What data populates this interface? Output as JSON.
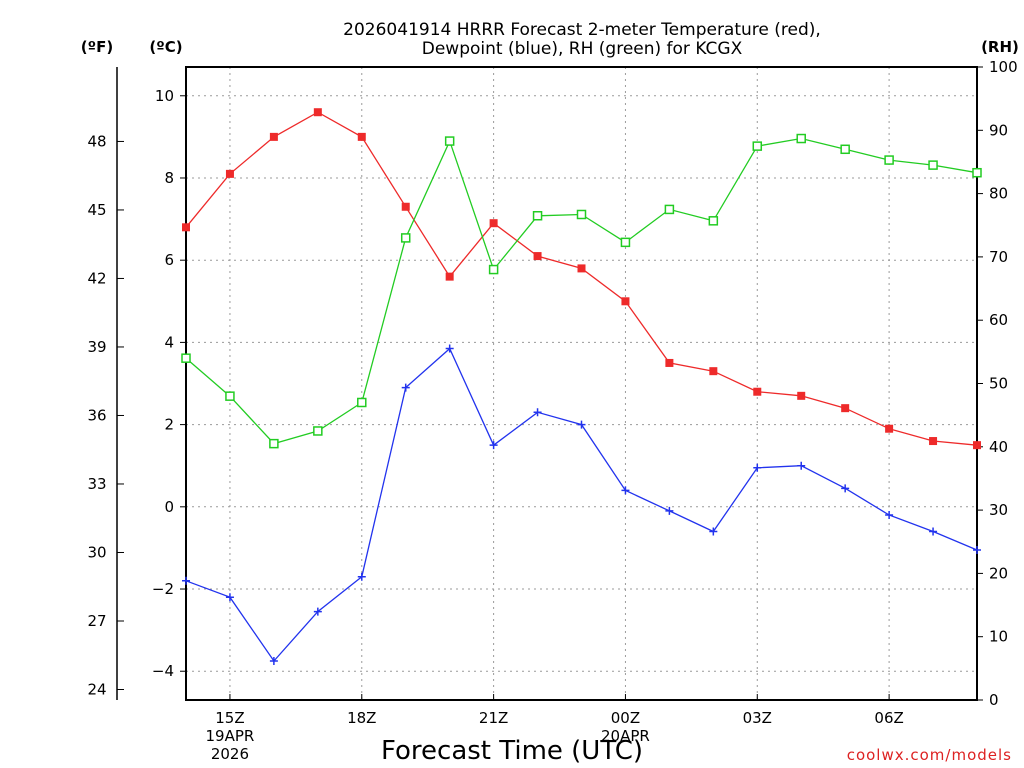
{
  "chart_data": {
    "type": "line",
    "title_line1": "2026041914 HRRR Forecast 2-meter Temperature (red),",
    "title_line2": "Dewpoint (blue), RH (green) for KCGX",
    "xlabel": "Forecast Time (UTC)",
    "credit": "coolwx.com/models",
    "unit_f": "(ºF)",
    "unit_c": "(ºC)",
    "unit_rh": "(RH)",
    "hours": [
      14,
      15,
      16,
      17,
      18,
      19,
      20,
      21,
      22,
      23,
      0,
      1,
      2,
      3,
      4,
      5,
      6,
      7,
      8
    ],
    "x_ticks": [
      {
        "hour": 15,
        "label": "15Z",
        "sub1": "19APR",
        "sub2": "2026"
      },
      {
        "hour": 18,
        "label": "18Z"
      },
      {
        "hour": 21,
        "label": "21Z"
      },
      {
        "hour": 24,
        "label": "00Z",
        "sub1": "20APR"
      },
      {
        "hour": 27,
        "label": "03Z"
      },
      {
        "hour": 30,
        "label": "06Z"
      }
    ],
    "x_range": [
      14,
      32
    ],
    "c_axis": {
      "range": [
        -4.7,
        10.7
      ],
      "ticks": [
        -4,
        -2,
        0,
        2,
        4,
        6,
        8,
        10
      ]
    },
    "f_axis": {
      "ticks": [
        24,
        27,
        30,
        33,
        36,
        39,
        42,
        45,
        48
      ]
    },
    "rh_axis": {
      "range": [
        0,
        100
      ],
      "ticks": [
        0,
        10,
        20,
        30,
        40,
        50,
        60,
        70,
        80,
        90,
        100
      ]
    },
    "series": [
      {
        "name": "Temperature",
        "color": "#ee2a2a",
        "marker": "filled-square",
        "axis": "c",
        "values": [
          6.8,
          8.1,
          9.0,
          9.6,
          9.0,
          7.3,
          5.6,
          6.9,
          6.1,
          5.8,
          5.0,
          3.5,
          3.3,
          2.8,
          2.7,
          2.4,
          1.9,
          1.6,
          1.5
        ]
      },
      {
        "name": "Dewpoint",
        "color": "#2233ee",
        "marker": "plus",
        "axis": "c",
        "values": [
          -1.8,
          -2.2,
          -3.75,
          -2.55,
          -1.7,
          2.9,
          3.85,
          1.5,
          2.3,
          2.0,
          0.4,
          -0.1,
          -0.6,
          0.95,
          1.0,
          0.45,
          -0.2,
          -0.6,
          -1.05
        ]
      },
      {
        "name": "RH",
        "color": "#22cc22",
        "marker": "open-square",
        "axis": "rh",
        "values": [
          54,
          48,
          40.5,
          42.5,
          47,
          73,
          88.3,
          68,
          76.5,
          76.7,
          72.3,
          77.5,
          75.7,
          87.5,
          88.7,
          87,
          85.3,
          84.5,
          83.3
        ]
      }
    ]
  }
}
